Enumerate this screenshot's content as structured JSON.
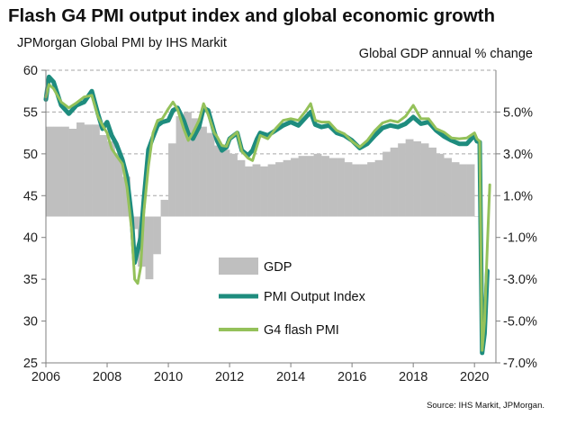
{
  "title": "Flash G4 PMI output index and global economic growth",
  "subtitle_left": "JPMorgan Global PMI by IHS Markit",
  "subtitle_right": "Global GDP annual % change",
  "source": "Source: IHS Markit, JPMorgan.",
  "colors": {
    "gdp": "#bfbfbf",
    "pmi": "#1e8c7e",
    "flash": "#94c15a",
    "grid": "#a6a6a6"
  },
  "chart_data": {
    "type": "line",
    "title": "Flash G4 PMI output index and global economic growth",
    "xlabel": "",
    "ylabel": "JPMorgan Global PMI by IHS Markit",
    "y2label": "Global GDP annual % change",
    "xlim": [
      2006,
      2020.7
    ],
    "ylim": [
      25,
      60
    ],
    "y2lim": [
      -7.0,
      7.0
    ],
    "x_ticks": [
      "2006",
      "2008",
      "2010",
      "2012",
      "2014",
      "2016",
      "2018",
      "2020"
    ],
    "y_ticks": [
      "25",
      "30",
      "35",
      "40",
      "45",
      "50",
      "55",
      "60"
    ],
    "y2_ticks": [
      "5.0%",
      "3.0%",
      "1.0%",
      "-1.0%",
      "-3.0%",
      "-5.0%",
      "-7.0%"
    ],
    "grid": "horizontal dashed at 45, 50, 55, 60",
    "legend_position": "lower-center",
    "series": [
      {
        "name": "GDP",
        "style": "step-area",
        "axis": "right",
        "x": [
          2006.0,
          2006.25,
          2006.5,
          2006.75,
          2007.0,
          2007.25,
          2007.5,
          2007.75,
          2008.0,
          2008.25,
          2008.5,
          2008.75,
          2009.0,
          2009.25,
          2009.5,
          2009.75,
          2010.0,
          2010.25,
          2010.5,
          2010.75,
          2011.0,
          2011.25,
          2011.5,
          2011.75,
          2012.0,
          2012.25,
          2012.5,
          2012.75,
          2013.0,
          2013.25,
          2013.5,
          2013.75,
          2014.0,
          2014.25,
          2014.5,
          2014.75,
          2015.0,
          2015.25,
          2015.5,
          2015.75,
          2016.0,
          2016.25,
          2016.5,
          2016.75,
          2017.0,
          2017.25,
          2017.5,
          2017.75,
          2018.0,
          2018.25,
          2018.5,
          2018.75,
          2019.0,
          2019.25,
          2019.5,
          2019.75,
          2020.0
        ],
        "values": [
          4.3,
          4.3,
          4.3,
          4.2,
          4.5,
          4.4,
          4.4,
          3.9,
          3.6,
          3.0,
          1.9,
          -0.6,
          -2.4,
          -3.0,
          -1.8,
          0.8,
          3.5,
          4.8,
          5.0,
          4.7,
          4.3,
          4.0,
          3.4,
          3.2,
          3.0,
          2.7,
          2.4,
          2.5,
          2.4,
          2.5,
          2.6,
          2.7,
          2.8,
          2.9,
          2.9,
          3.0,
          2.9,
          2.8,
          2.8,
          2.6,
          2.5,
          2.5,
          2.6,
          2.7,
          3.1,
          3.3,
          3.5,
          3.7,
          3.6,
          3.5,
          3.3,
          3.0,
          2.8,
          2.6,
          2.5,
          2.5,
          0.0
        ]
      },
      {
        "name": "PMI Output Index",
        "axis": "left",
        "x": [
          2006.0,
          2006.1,
          2006.25,
          2006.5,
          2006.75,
          2007.0,
          2007.25,
          2007.5,
          2007.7,
          2007.85,
          2008.0,
          2008.15,
          2008.3,
          2008.5,
          2008.65,
          2008.8,
          2008.9,
          2009.0,
          2009.1,
          2009.2,
          2009.35,
          2009.5,
          2009.65,
          2009.8,
          2010.0,
          2010.15,
          2010.3,
          2010.5,
          2010.65,
          2010.8,
          2011.0,
          2011.15,
          2011.3,
          2011.5,
          2011.6,
          2011.75,
          2011.9,
          2012.0,
          2012.25,
          2012.4,
          2012.6,
          2012.75,
          2012.9,
          2013.0,
          2013.25,
          2013.5,
          2013.75,
          2014.0,
          2014.25,
          2014.5,
          2014.65,
          2014.8,
          2015.0,
          2015.25,
          2015.5,
          2015.75,
          2016.0,
          2016.25,
          2016.5,
          2016.75,
          2017.0,
          2017.25,
          2017.5,
          2017.75,
          2018.0,
          2018.25,
          2018.5,
          2018.75,
          2019.0,
          2019.25,
          2019.5,
          2019.75,
          2020.0,
          2020.08,
          2020.17,
          2020.25,
          2020.33,
          2020.42
        ],
        "values": [
          56.5,
          59.2,
          58.6,
          55.8,
          54.8,
          55.8,
          56.2,
          57.5,
          54.8,
          53.0,
          53.8,
          52.2,
          51.2,
          49.3,
          47.2,
          42.5,
          37.0,
          38.5,
          40.0,
          44.5,
          50.5,
          52.0,
          53.4,
          53.8,
          54.0,
          55.2,
          55.5,
          54.0,
          52.4,
          51.8,
          53.2,
          55.5,
          55.2,
          52.6,
          51.5,
          50.4,
          50.8,
          51.8,
          52.5,
          50.4,
          49.8,
          50.4,
          51.8,
          52.5,
          52.2,
          52.8,
          53.4,
          53.8,
          53.4,
          54.4,
          55.0,
          53.5,
          53.2,
          53.4,
          52.5,
          52.2,
          51.6,
          50.7,
          51.2,
          52.2,
          53.1,
          53.4,
          53.2,
          53.6,
          54.4,
          53.6,
          53.8,
          52.8,
          52.1,
          51.6,
          51.2,
          51.2,
          52.2,
          51.5,
          51.4,
          26.2,
          28.5,
          36.0
        ]
      },
      {
        "name": "G4 flash PMI",
        "axis": "left",
        "x": [
          2006.0,
          2006.1,
          2006.25,
          2006.5,
          2006.75,
          2007.0,
          2007.25,
          2007.5,
          2007.7,
          2007.85,
          2008.0,
          2008.15,
          2008.3,
          2008.5,
          2008.65,
          2008.8,
          2008.9,
          2009.0,
          2009.1,
          2009.2,
          2009.35,
          2009.5,
          2009.65,
          2009.8,
          2010.0,
          2010.15,
          2010.3,
          2010.5,
          2010.65,
          2010.8,
          2011.0,
          2011.15,
          2011.3,
          2011.5,
          2011.6,
          2011.75,
          2011.9,
          2012.0,
          2012.25,
          2012.4,
          2012.6,
          2012.75,
          2012.9,
          2013.0,
          2013.25,
          2013.5,
          2013.75,
          2014.0,
          2014.25,
          2014.5,
          2014.65,
          2014.8,
          2015.0,
          2015.25,
          2015.5,
          2015.75,
          2016.0,
          2016.25,
          2016.5,
          2016.75,
          2017.0,
          2017.25,
          2017.5,
          2017.75,
          2018.0,
          2018.25,
          2018.5,
          2018.75,
          2019.0,
          2019.25,
          2019.5,
          2019.75,
          2020.0,
          2020.08,
          2020.17,
          2020.25,
          2020.33,
          2020.42,
          2020.5
        ],
        "values": [
          56.8,
          58.3,
          57.8,
          56.2,
          55.5,
          56.1,
          56.8,
          57.0,
          54.5,
          53.4,
          52.5,
          50.6,
          49.8,
          48.8,
          46.0,
          41.0,
          35.0,
          34.5,
          36.5,
          43.0,
          48.5,
          52.5,
          54.0,
          54.2,
          55.4,
          56.2,
          55.3,
          53.0,
          51.6,
          52.5,
          54.0,
          56.0,
          54.7,
          52.5,
          52.0,
          51.0,
          50.9,
          51.8,
          52.6,
          50.3,
          49.5,
          49.2,
          51.0,
          52.2,
          51.8,
          53.0,
          54.0,
          54.2,
          54.0,
          55.2,
          56.0,
          54.0,
          53.8,
          53.8,
          52.8,
          52.4,
          51.5,
          50.8,
          51.6,
          52.8,
          53.7,
          54.0,
          53.8,
          54.5,
          55.8,
          54.2,
          54.2,
          53.0,
          52.6,
          51.9,
          51.8,
          51.9,
          52.5,
          51.8,
          51.5,
          26.5,
          30.0,
          39.0,
          46.3
        ]
      }
    ]
  }
}
